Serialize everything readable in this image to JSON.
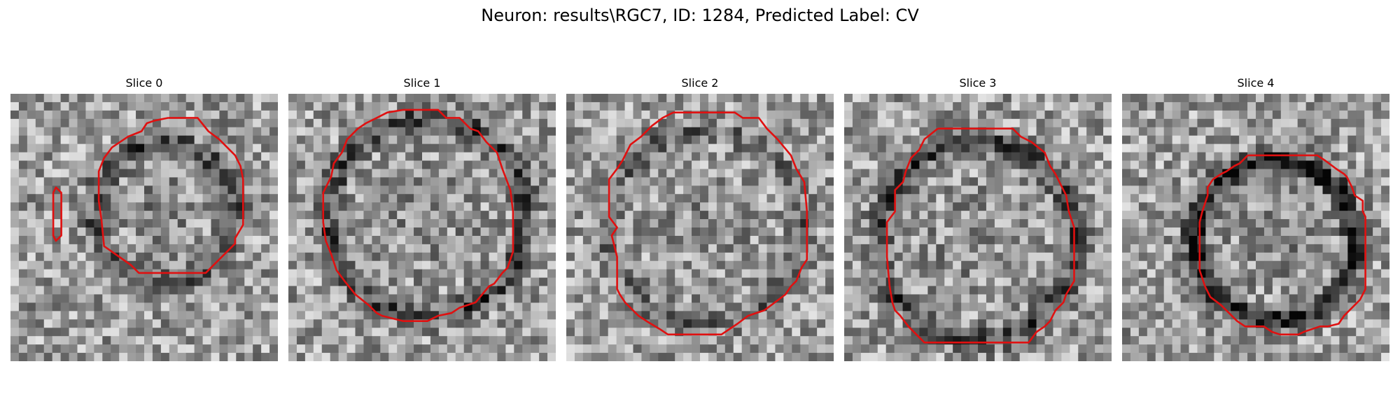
{
  "figure": {
    "suptitle": "Neuron: results\\RGC7, ID: 1284, Predicted Label: CV"
  },
  "panels": [
    {
      "title": "Slice 0"
    },
    {
      "title": "Slice 1"
    },
    {
      "title": "Slice 2"
    },
    {
      "title": "Slice 3"
    },
    {
      "title": "Slice 4"
    }
  ],
  "colors": {
    "background": "#ffffff",
    "contour": "#e01010",
    "image_colormap": "gray"
  }
}
